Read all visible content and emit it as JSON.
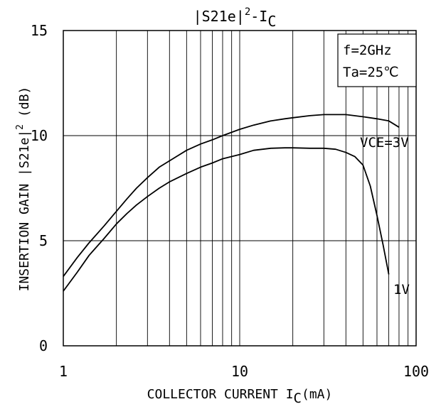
{
  "chart_data": {
    "type": "line",
    "title": "|S21e|",
    "title_sup": "2",
    "title_tail": "-I",
    "title_sub": "C",
    "ylabel": "INSERTION GAIN |S21e|",
    "ylabel_sup": "2",
    "ylabel_unit": "(dB)",
    "xlabel": "COLLECTOR CURRENT I",
    "xlabel_sub": "C",
    "xlabel_unit": "(mA)",
    "x_scale": "log",
    "xlim": [
      1,
      100
    ],
    "ylim": [
      0,
      15
    ],
    "x_ticks": [
      1,
      10,
      100
    ],
    "x_tick_labels": [
      "1",
      "10",
      "100"
    ],
    "y_ticks": [
      0,
      5,
      10,
      15
    ],
    "y_tick_labels": [
      "0",
      "5",
      "10",
      "15"
    ],
    "grid": true,
    "annotations": [
      "f=2GHz",
      "Ta=25℃"
    ],
    "series": [
      {
        "name": "VCE=3V",
        "x": [
          1,
          1.2,
          1.4,
          1.7,
          2,
          2.3,
          2.6,
          3,
          3.5,
          4,
          5,
          6,
          7,
          8,
          10,
          12,
          15,
          18,
          20,
          25,
          30,
          40,
          50,
          60,
          70,
          80
        ],
        "y": [
          3.3,
          4.2,
          4.9,
          5.7,
          6.4,
          7.0,
          7.5,
          8.0,
          8.5,
          8.8,
          9.3,
          9.6,
          9.8,
          10.0,
          10.3,
          10.5,
          10.7,
          10.8,
          10.85,
          10.95,
          11.0,
          11.0,
          10.9,
          10.8,
          10.7,
          10.4
        ]
      },
      {
        "name": "1V",
        "x": [
          1,
          1.2,
          1.4,
          1.7,
          2,
          2.3,
          2.6,
          3,
          3.5,
          4,
          5,
          6,
          7,
          8,
          10,
          12,
          15,
          18,
          20,
          25,
          30,
          35,
          40,
          45,
          50,
          55,
          60,
          65,
          70
        ],
        "y": [
          2.6,
          3.5,
          4.3,
          5.1,
          5.8,
          6.3,
          6.7,
          7.1,
          7.5,
          7.8,
          8.2,
          8.5,
          8.7,
          8.9,
          9.1,
          9.3,
          9.4,
          9.42,
          9.42,
          9.4,
          9.4,
          9.35,
          9.2,
          9.0,
          8.6,
          7.6,
          6.2,
          4.8,
          3.4
        ]
      }
    ]
  }
}
